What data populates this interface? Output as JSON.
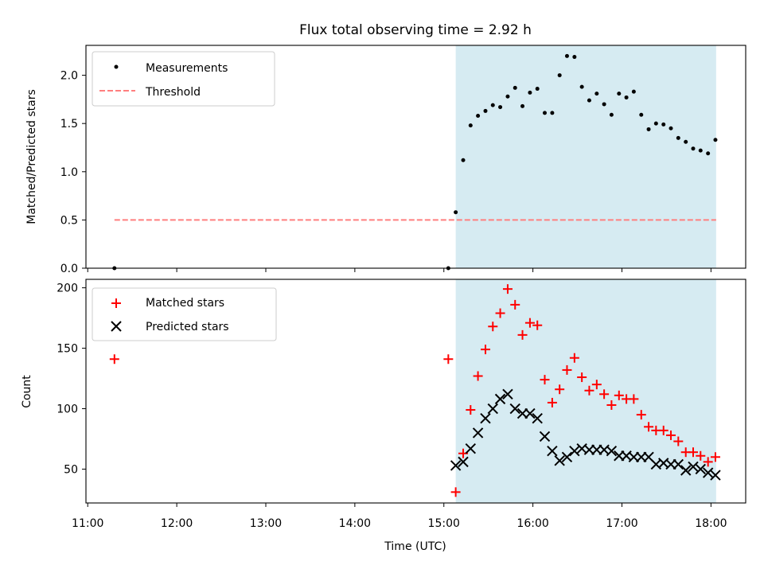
{
  "figure": {
    "title": "Flux total observing time = 2.92 h",
    "xlabel": "Time (UTC)",
    "x_tick_labels": [
      "11:00",
      "12:00",
      "13:00",
      "14:00",
      "15:00",
      "16:00",
      "17:00",
      "18:00"
    ]
  },
  "colors": {
    "span_fill": "#add8e6",
    "threshold": "#ff7f7f",
    "measurements": "#000000",
    "matched": "#ff0000",
    "predicted": "#000000"
  },
  "chart_data": [
    {
      "type": "scatter",
      "panel": "top",
      "ylabel": "Matched/Predicted stars",
      "xlim": [
        10.98,
        18.39
      ],
      "ylim": [
        0.0,
        2.31
      ],
      "y_ticks": [
        0.0,
        0.5,
        1.0,
        1.5,
        2.0
      ],
      "y_tick_labels": [
        "0.0",
        "0.5",
        "1.0",
        "1.5",
        "2.0"
      ],
      "grid": false,
      "legend_position": "upper-left",
      "observing_span": [
        15.133,
        18.058
      ],
      "series": [
        {
          "name": "Measurements",
          "marker": "dot",
          "x": [
            11.3,
            15.05,
            15.133,
            15.217,
            15.3,
            15.383,
            15.467,
            15.55,
            15.633,
            15.717,
            15.8,
            15.883,
            15.967,
            16.05,
            16.133,
            16.217,
            16.3,
            16.383,
            16.467,
            16.55,
            16.633,
            16.717,
            16.8,
            16.883,
            16.967,
            17.05,
            17.133,
            17.217,
            17.3,
            17.383,
            17.467,
            17.55,
            17.633,
            17.717,
            17.8,
            17.883,
            17.967,
            18.05
          ],
          "y": [
            0.0,
            0.0,
            0.58,
            1.12,
            1.48,
            1.58,
            1.63,
            1.69,
            1.67,
            1.78,
            1.87,
            1.68,
            1.82,
            1.86,
            1.61,
            1.61,
            2.0,
            2.2,
            2.19,
            1.88,
            1.74,
            1.81,
            1.7,
            1.59,
            1.81,
            1.77,
            1.83,
            1.59,
            1.44,
            1.5,
            1.49,
            1.45,
            1.35,
            1.31,
            1.24,
            1.22,
            1.19,
            1.33
          ]
        },
        {
          "name": "Threshold",
          "line_style": "dashed",
          "x": [
            11.3,
            18.058
          ],
          "y": [
            0.5,
            0.5
          ]
        }
      ]
    },
    {
      "type": "scatter",
      "panel": "bottom",
      "ylabel": "Count",
      "xlabel": "Time (UTC)",
      "xlim": [
        10.98,
        18.39
      ],
      "ylim": [
        22,
        207
      ],
      "y_ticks": [
        50,
        100,
        150,
        200
      ],
      "y_tick_labels": [
        "50",
        "100",
        "150",
        "200"
      ],
      "grid": false,
      "legend_position": "upper-left",
      "observing_span": [
        15.133,
        18.058
      ],
      "series": [
        {
          "name": "Matched stars",
          "marker": "plus",
          "x": [
            11.3,
            15.05,
            15.133,
            15.217,
            15.3,
            15.383,
            15.467,
            15.55,
            15.633,
            15.717,
            15.8,
            15.883,
            15.967,
            16.05,
            16.133,
            16.217,
            16.3,
            16.383,
            16.467,
            16.55,
            16.633,
            16.717,
            16.8,
            16.883,
            16.967,
            17.05,
            17.133,
            17.217,
            17.3,
            17.383,
            17.467,
            17.55,
            17.633,
            17.717,
            17.8,
            17.883,
            17.967,
            18.05
          ],
          "y": [
            141,
            141,
            31,
            63,
            99,
            127,
            149,
            168,
            179,
            199,
            186,
            161,
            171,
            169,
            124,
            105,
            116,
            132,
            142,
            126,
            115,
            120,
            112,
            103,
            111,
            108,
            108,
            95,
            85,
            82,
            82,
            78,
            73,
            64,
            64,
            61,
            56,
            60
          ]
        },
        {
          "name": "Predicted stars",
          "marker": "x",
          "x": [
            15.133,
            15.217,
            15.3,
            15.383,
            15.467,
            15.55,
            15.633,
            15.717,
            15.8,
            15.883,
            15.967,
            16.05,
            16.133,
            16.217,
            16.3,
            16.383,
            16.467,
            16.55,
            16.633,
            16.717,
            16.8,
            16.883,
            16.967,
            17.05,
            17.133,
            17.217,
            17.3,
            17.383,
            17.467,
            17.55,
            17.633,
            17.717,
            17.8,
            17.883,
            17.967,
            18.05
          ],
          "y": [
            53,
            56,
            67,
            80,
            92,
            100,
            108,
            112,
            100,
            96,
            96,
            92,
            77,
            65,
            57,
            60,
            65,
            67,
            66,
            66,
            66,
            65,
            61,
            61,
            60,
            60,
            60,
            54,
            55,
            54,
            54,
            49,
            52,
            50,
            47,
            45
          ]
        }
      ]
    }
  ]
}
